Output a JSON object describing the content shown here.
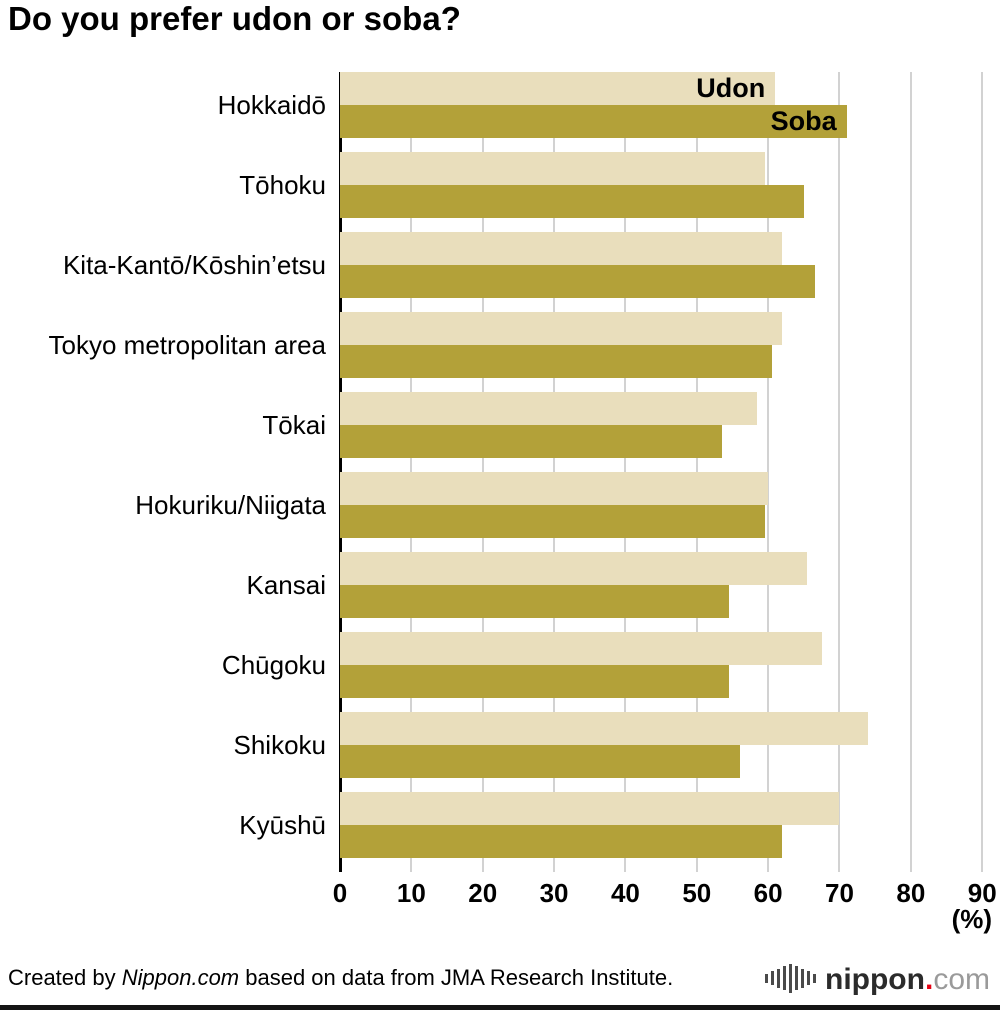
{
  "title": "Do you prefer udon or soba?",
  "chart_data": {
    "type": "bar",
    "orientation": "horizontal",
    "categories": [
      "Hokkaidō",
      "Tōhoku",
      "Kita-Kantō/Kōshin’etsu",
      "Tokyo metropolitan area",
      "Tōkai",
      "Hokuriku/Niigata",
      "Kansai",
      "Chūgoku",
      "Shikoku",
      "Kyūshū"
    ],
    "series": [
      {
        "name": "Udon",
        "color": "#e9debc",
        "values": [
          61,
          59.5,
          62,
          62,
          58.5,
          60,
          65.5,
          67.5,
          74,
          70
        ]
      },
      {
        "name": "Soba",
        "color": "#b3a139",
        "values": [
          71,
          65,
          66.5,
          60.5,
          53.5,
          59.5,
          54.5,
          54.5,
          56,
          62
        ]
      }
    ],
    "xlim": [
      0,
      90
    ],
    "xticks": [
      0,
      10,
      20,
      30,
      40,
      50,
      60,
      70,
      80,
      90
    ],
    "x_unit_label": "(%)",
    "grid": true,
    "legend_position": "inside-first-bars"
  },
  "footer": {
    "credit_prefix": "Created by ",
    "credit_source": "Nippon.com",
    "credit_suffix": " based on data from JMA Research Institute.",
    "logo": {
      "name": "nippon",
      "dot": ".",
      "tld": "com"
    }
  }
}
